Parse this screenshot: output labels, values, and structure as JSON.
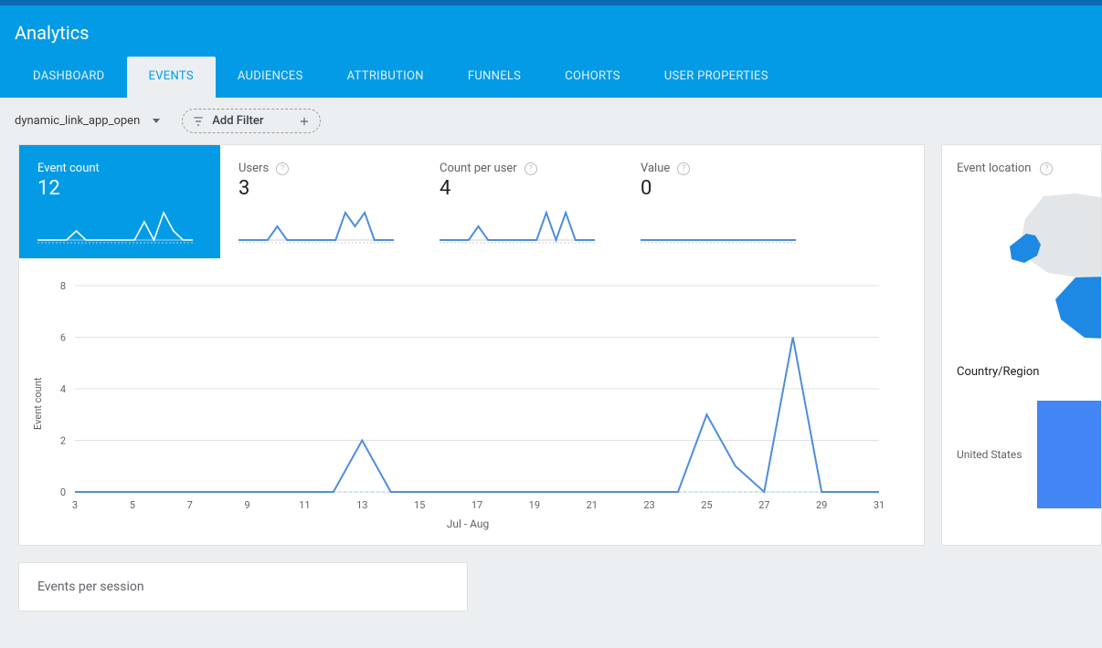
{
  "colors": {
    "brand": "#039be5",
    "brand_dark": "#0b6cb3",
    "line": "#4f8ddb",
    "grid": "#e0e0e0",
    "text_muted": "#5f6368",
    "bg": "#eceff1",
    "bar_fill": "#4285f4"
  },
  "header": {
    "title": "Analytics"
  },
  "tabs": [
    {
      "label": "DASHBOARD",
      "active": false
    },
    {
      "label": "EVENTS",
      "active": true
    },
    {
      "label": "AUDIENCES",
      "active": false
    },
    {
      "label": "ATTRIBUTION",
      "active": false
    },
    {
      "label": "FUNNELS",
      "active": false
    },
    {
      "label": "COHORTS",
      "active": false
    },
    {
      "label": "USER PROPERTIES",
      "active": false
    }
  ],
  "filter_bar": {
    "selected_event": "dynamic_link_app_open",
    "add_filter_label": "Add Filter"
  },
  "metric_tiles": [
    {
      "key": "event_count",
      "label": "Event count",
      "value": "12",
      "active": true,
      "spark": [
        0,
        0,
        0,
        0,
        1,
        0,
        0,
        0,
        0,
        0,
        0,
        2,
        0,
        3,
        1,
        0,
        0
      ]
    },
    {
      "key": "users",
      "label": "Users",
      "value": "3",
      "active": false,
      "spark": [
        0,
        0,
        0,
        0,
        1,
        0,
        0,
        0,
        0,
        0,
        0,
        2,
        1,
        2,
        0,
        0,
        0
      ]
    },
    {
      "key": "count_per_user",
      "label": "Count per user",
      "value": "4",
      "active": false,
      "spark": [
        0,
        0,
        0,
        0,
        1,
        0,
        0,
        0,
        0,
        0,
        0,
        2,
        0,
        2,
        0,
        0,
        0
      ]
    },
    {
      "key": "value",
      "label": "Value",
      "value": "0",
      "active": false,
      "spark": [
        0,
        0,
        0,
        0,
        0,
        0,
        0,
        0,
        0,
        0,
        0,
        0,
        0,
        0,
        0,
        0,
        0
      ]
    }
  ],
  "main_chart": {
    "type": "line",
    "y_label": "Event count",
    "x_caption": "Jul - Aug",
    "ylim": [
      0,
      8
    ],
    "ytick_step": 2,
    "x_ticks": [
      "3",
      "5",
      "7",
      "9",
      "11",
      "13",
      "15",
      "17",
      "19",
      "21",
      "23",
      "25",
      "27",
      "29",
      "31"
    ],
    "series_color": "#4f8ddb",
    "grid_color": "#e0e0e0",
    "background_color": "#ffffff",
    "line_width": 2,
    "data": [
      {
        "x": 3,
        "y": 0
      },
      {
        "x": 5,
        "y": 0
      },
      {
        "x": 7,
        "y": 0
      },
      {
        "x": 9,
        "y": 0
      },
      {
        "x": 11,
        "y": 0
      },
      {
        "x": 12,
        "y": 0
      },
      {
        "x": 13,
        "y": 2
      },
      {
        "x": 14,
        "y": 0
      },
      {
        "x": 15,
        "y": 0
      },
      {
        "x": 17,
        "y": 0
      },
      {
        "x": 19,
        "y": 0
      },
      {
        "x": 21,
        "y": 0
      },
      {
        "x": 23,
        "y": 0
      },
      {
        "x": 24,
        "y": 0
      },
      {
        "x": 25,
        "y": 3
      },
      {
        "x": 26,
        "y": 1
      },
      {
        "x": 27,
        "y": 0
      },
      {
        "x": 28,
        "y": 6
      },
      {
        "x": 29,
        "y": 0
      },
      {
        "x": 31,
        "y": 0
      }
    ]
  },
  "side_panel": {
    "title": "Event location",
    "country_region_label": "Country/Region",
    "rows": [
      {
        "name": "United States",
        "bar_color": "#4285f4",
        "rel_width": 1.0
      }
    ],
    "map": {
      "highlight_color": "#1e88e5",
      "land_color": "#eceff1"
    }
  },
  "secondary_card": {
    "title": "Events per session"
  }
}
